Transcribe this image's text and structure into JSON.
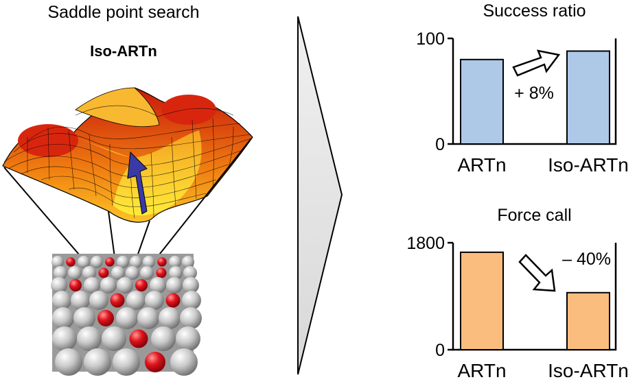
{
  "left_panel": {
    "title": "Saddle point search",
    "method": "Iso-ARTn"
  },
  "colors": {
    "success_bar": "#aec8e8",
    "force_bar": "#fbbd7e",
    "surface_high": "#d42410",
    "surface_low": "#ffe832",
    "arrow": "#3a3aa6",
    "atom_red": "#d0141c",
    "atom_gray": "#bdbdbd"
  },
  "chart_data": [
    {
      "type": "bar",
      "title": "Success ratio",
      "categories": [
        "ARTn",
        "Iso-ARTn"
      ],
      "values": [
        80,
        88
      ],
      "ylim": [
        0,
        100
      ],
      "yticks": [
        "0",
        "100"
      ],
      "annotation": "+ 8%",
      "annotation_arrow": "up-right"
    },
    {
      "type": "bar",
      "title": "Force call",
      "categories": [
        "ARTn",
        "Iso-ARTn"
      ],
      "values": [
        1640,
        960
      ],
      "ylim": [
        0,
        1800
      ],
      "yticks": [
        "0",
        "1800"
      ],
      "annotation": "– 40%",
      "annotation_arrow": "down-right"
    }
  ]
}
